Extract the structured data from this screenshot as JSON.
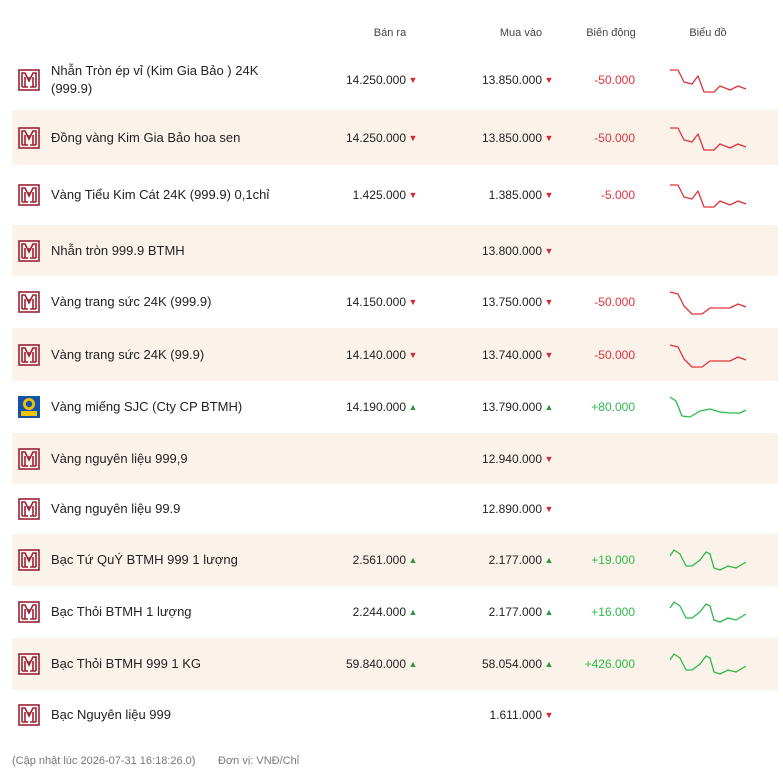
{
  "header": {
    "sell": "Bán ra",
    "buy": "Mua vào",
    "change": "Biến động",
    "chart": "Biểu đồ"
  },
  "rows": [
    {
      "name": "Nhẫn Tròn ép vỉ (Kim Gia Bảo ) 24K (999.9)",
      "sell": "14.250.000",
      "sell_arrow": "▼",
      "buy": "13.850.000",
      "buy_arrow": "▼",
      "change": "-50.000"
    },
    {
      "name": "Đồng vàng Kim Gia Bảo hoa sen",
      "sell": "14.250.000",
      "sell_arrow": "▼",
      "buy": "13.850.000",
      "buy_arrow": "▼",
      "change": "-50.000"
    },
    {
      "name": "Vàng Tiểu Kim Cát 24K (999.9) 0,1chỉ",
      "sell": "1.425.000",
      "sell_arrow": "▼",
      "buy": "1.385.000",
      "buy_arrow": "▼",
      "change": "-5.000"
    },
    {
      "name": "Nhẫn tròn 999.9 BTMH",
      "buy": "13.800.000",
      "buy_arrow": "▼"
    },
    {
      "name": "Vàng trang sức 24K (999.9)",
      "sell": "14.150.000",
      "sell_arrow": "▼",
      "buy": "13.750.000",
      "buy_arrow": "▼",
      "change": "-50.000"
    },
    {
      "name": "Vàng trang sức 24K (99.9)",
      "sell": "14.140.000",
      "sell_arrow": "▼",
      "buy": "13.740.000",
      "buy_arrow": "▼",
      "change": "-50.000"
    },
    {
      "name": "Vàng miếng SJC (Cty CP BTMH)",
      "sell": "14.190.000",
      "sell_arrow": "▲",
      "buy": "13.790.000",
      "buy_arrow": "▲",
      "change": "+80.000"
    },
    {
      "name": "Vàng nguyên liệu 999,9",
      "buy": "12.940.000",
      "buy_arrow": "▼"
    },
    {
      "name": "Vàng nguyên liệu 99.9",
      "buy": "12.890.000",
      "buy_arrow": "▼"
    },
    {
      "name": "Bạc Tứ QuÝ BTMH 999 1 lượng",
      "sell": "2.561.000",
      "sell_arrow": "▲",
      "buy": "2.177.000",
      "buy_arrow": "▲",
      "change": "+19.000"
    },
    {
      "name": "Bạc Thỏi BTMH 1 lượng",
      "sell": "2.244.000",
      "sell_arrow": "▲",
      "buy": "2.177.000",
      "buy_arrow": "▲",
      "change": "+16.000"
    },
    {
      "name": "Bạc Thỏi BTMH 999 1 KG",
      "sell": "59.840.000",
      "sell_arrow": "▲",
      "buy": "58.054.000",
      "buy_arrow": "▲",
      "change": "+426.000"
    },
    {
      "name": "Bạc Nguyên liệu 999",
      "buy": "1.611.000",
      "buy_arrow": "▼"
    }
  ],
  "footer": {
    "updated": "(Cập nhật lúc 2026-07-31 16:18:26.0)",
    "unit": "Đơn vị: VNĐ/Chỉ"
  }
}
